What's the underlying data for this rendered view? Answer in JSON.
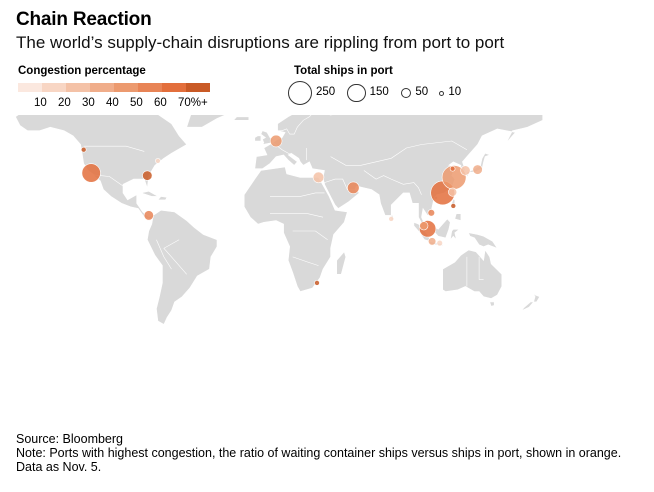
{
  "header": {
    "title": "Chain Reaction",
    "subtitle": "The world’s supply-chain disruptions are rippling from port to port"
  },
  "legend": {
    "congestion": {
      "title": "Congestion percentage",
      "labels": [
        "10",
        "20",
        "30",
        "40",
        "50",
        "60",
        "70%+"
      ],
      "colors": [
        "#fbe8df",
        "#f8d6c4",
        "#f4c2a7",
        "#f0ad8a",
        "#ec9a6f",
        "#e88456",
        "#e36f3c",
        "#c95a26"
      ]
    },
    "ships": {
      "title": "Total ships in port",
      "items": [
        {
          "value": 250,
          "label": "250"
        },
        {
          "value": 150,
          "label": "150"
        },
        {
          "value": 50,
          "label": "50"
        },
        {
          "value": 10,
          "label": "10"
        }
      ]
    }
  },
  "map_data": {
    "land_color": "#d9d9d9",
    "border_color": "#ffffff",
    "ports": [
      {
        "area": "US West Coast (Seattle)",
        "lon": -123,
        "lat": 47,
        "ships": 8,
        "congestion": 70
      },
      {
        "area": "US West Coast (LA/Long Beach)",
        "lon": -118,
        "lat": 33.5,
        "ships": 150,
        "congestion": 60
      },
      {
        "area": "US East Coast (Savannah)",
        "lon": -81,
        "lat": 32,
        "ships": 40,
        "congestion": 70
      },
      {
        "area": "US East Coast (New York)",
        "lon": -74,
        "lat": 40.5,
        "ships": 10,
        "congestion": 10
      },
      {
        "area": "Caribbean",
        "lon": -80,
        "lat": 9,
        "ships": 40,
        "congestion": 50
      },
      {
        "area": "North Europe",
        "lon": 4,
        "lat": 52,
        "ships": 60,
        "congestion": 40
      },
      {
        "area": "Mediterranean",
        "lon": 32,
        "lat": 31,
        "ships": 50,
        "congestion": 20
      },
      {
        "area": "Persian Gulf",
        "lon": 55,
        "lat": 25,
        "ships": 60,
        "congestion": 50
      },
      {
        "area": "South Africa",
        "lon": 31,
        "lat": -30,
        "ships": 10,
        "congestion": 70
      },
      {
        "area": "South Asia",
        "lon": 80,
        "lat": 7,
        "ships": 10,
        "congestion": 10
      },
      {
        "area": "Malaysia",
        "lon": 101.5,
        "lat": 3,
        "ships": 30,
        "congestion": 40
      },
      {
        "area": "Singapore",
        "lon": 104,
        "lat": 1.3,
        "ships": 120,
        "congestion": 60
      },
      {
        "area": "Indonesia",
        "lon": 107,
        "lat": -6,
        "ships": 25,
        "congestion": 30
      },
      {
        "area": "Indonesia East",
        "lon": 112,
        "lat": -7,
        "ships": 15,
        "congestion": 10
      },
      {
        "area": "Vietnam",
        "lon": 106.5,
        "lat": 10.5,
        "ships": 20,
        "congestion": 50
      },
      {
        "area": "South China (Hong Kong/Shenzhen)",
        "lon": 114,
        "lat": 22,
        "ships": 250,
        "congestion": 60
      },
      {
        "area": "East China (Shanghai/Ningbo)",
        "lon": 121.5,
        "lat": 31,
        "ships": 250,
        "congestion": 40
      },
      {
        "area": "Taiwan",
        "lon": 120.5,
        "lat": 22.5,
        "ships": 30,
        "congestion": 20
      },
      {
        "area": "Korea",
        "lon": 129,
        "lat": 35,
        "ships": 40,
        "congestion": 20
      },
      {
        "area": "Japan",
        "lon": 137,
        "lat": 35.5,
        "ships": 40,
        "congestion": 30
      },
      {
        "area": "North China (Qingdao)",
        "lon": 120.5,
        "lat": 36,
        "ships": 10,
        "congestion": 60
      },
      {
        "area": "Philippines",
        "lon": 121,
        "lat": 14.5,
        "ships": 8,
        "congestion": 70
      }
    ]
  },
  "footer": {
    "source": "Source: Bloomberg",
    "note": "Note: Ports with highest congestion, the ratio of waiting container ships versus ships in port, shown in orange. Data as Nov. 5."
  }
}
